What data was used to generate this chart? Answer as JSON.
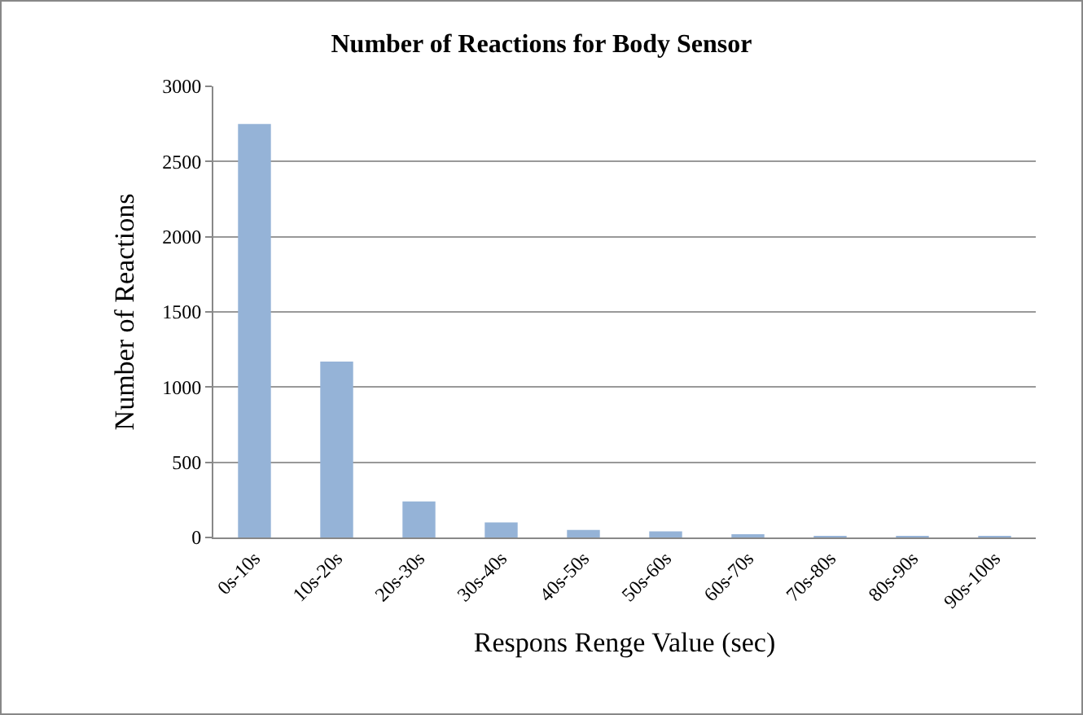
{
  "chart_data": {
    "type": "bar",
    "title": "Number of Reactions for Body Sensor",
    "xlabel": "Respons Renge Value (sec)",
    "ylabel": "Number of Reactions",
    "categories": [
      "0s-10s",
      "10s-20s",
      "20s-30s",
      "30s-40s",
      "40s-50s",
      "50s-60s",
      "60s-70s",
      "70s-80s",
      "80s-90s",
      "90s-100s"
    ],
    "values": [
      2750,
      1170,
      240,
      100,
      50,
      40,
      20,
      10,
      10,
      10
    ],
    "color": "#95b3d7",
    "ylim": [
      0,
      3000
    ],
    "yticks": [
      0,
      500,
      1000,
      1500,
      2000,
      2500,
      3000
    ],
    "grid": "y",
    "legend": false
  }
}
